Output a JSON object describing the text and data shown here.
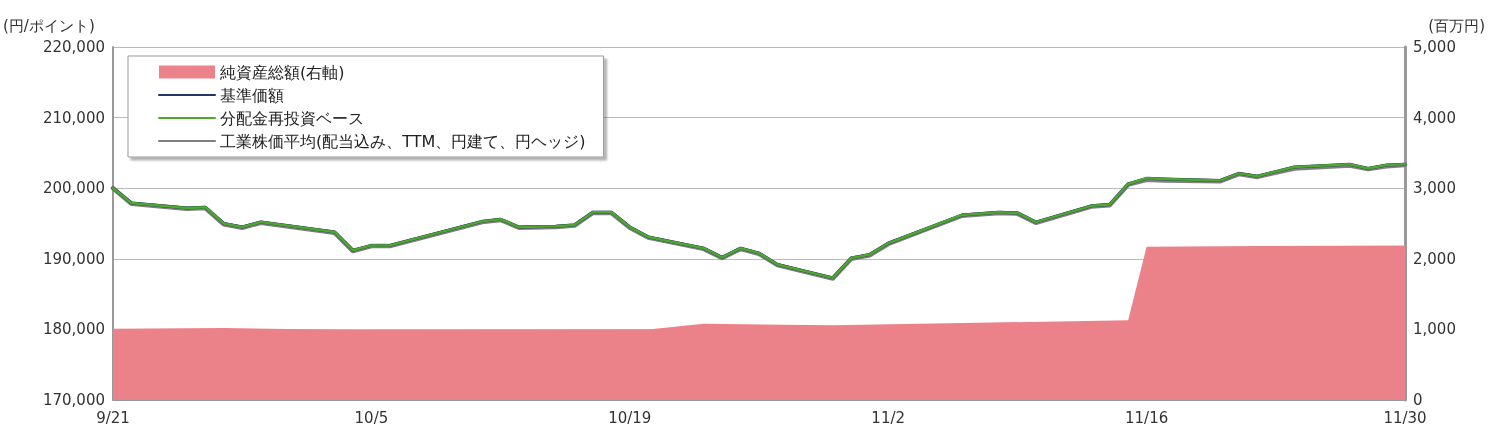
{
  "chart_data": {
    "type": "line",
    "ylabel": "(円/ポイント)",
    "y2label": "(百万円)",
    "xlim": [
      "--09-21",
      "--11-30"
    ],
    "xticks": [
      {
        "value": "--09-21",
        "label": "9/21"
      },
      {
        "value": "--10-05",
        "label": "10/5"
      },
      {
        "value": "--10-19",
        "label": "10/19"
      },
      {
        "value": "--11-02",
        "label": "11/2"
      },
      {
        "value": "--11-16",
        "label": "11/16"
      },
      {
        "value": "--11-30",
        "label": "11/30"
      }
    ],
    "ylim": [
      170000,
      220000
    ],
    "yticks": [
      {
        "value": 170000,
        "label": "170,000"
      },
      {
        "value": 180000,
        "label": "180,000"
      },
      {
        "value": 190000,
        "label": "190,000"
      },
      {
        "value": 200000,
        "label": "200,000"
      },
      {
        "value": 210000,
        "label": "210,000"
      },
      {
        "value": 220000,
        "label": "220,000"
      }
    ],
    "y2lim": [
      0,
      5000
    ],
    "y2ticks": [
      0,
      {
        "value": 1000,
        "label": "1,000"
      },
      {
        "value": 2000,
        "label": "2,000"
      },
      {
        "value": 3000,
        "label": "3,000"
      },
      {
        "value": 4000,
        "label": "4,000"
      },
      {
        "value": 5000,
        "label": "5,000"
      }
    ],
    "grid": "y",
    "legend": "top left",
    "marker": "none",
    "series": [
      {
        "name": "純資産総額(右軸)",
        "type": "area",
        "axis": "y2",
        "color": "#eb8289",
        "x": [
          "--09-21",
          "--09-27",
          "--10-04",
          "--10-19",
          "--10-20",
          "--10-23",
          "--10-30",
          "--11-06",
          "--11-15",
          "--11-16",
          "--11-22",
          "--11-30"
        ],
        "values": [
          1010,
          1020,
          990,
          1000,
          1000,
          1080,
          1060,
          1090,
          1130,
          2170,
          2180,
          2190
        ]
      },
      {
        "name": "基準価額",
        "type": "line",
        "color": "#203864",
        "x": [
          "--09-21",
          "--09-22",
          "--09-25",
          "--09-26",
          "--09-27",
          "--09-28",
          "--09-29",
          "--10-03",
          "--10-04",
          "--10-05",
          "--10-06",
          "--10-11",
          "--10-12",
          "--10-13",
          "--10-15",
          "--10-16",
          "--10-17",
          "--10-18",
          "--10-19",
          "--10-20",
          "--10-23",
          "--10-24",
          "--10-25",
          "--10-26",
          "--10-27",
          "--10-30",
          "--10-31",
          "--11-01",
          "--11-02",
          "--11-06",
          "--11-08",
          "--11-09",
          "--11-10",
          "--11-13",
          "--11-14",
          "--11-15",
          "--11-16",
          "--11-17",
          "--11-20",
          "--11-21",
          "--11-22",
          "--11-24",
          "--11-27",
          "--11-28",
          "--11-29",
          "--11-30"
        ],
        "values": [
          200000,
          197900,
          197200,
          197300,
          195000,
          194500,
          195200,
          193800,
          191200,
          191900,
          191900,
          195300,
          195600,
          194500,
          194600,
          194800,
          196600,
          196600,
          194500,
          193100,
          191500,
          190200,
          191500,
          190800,
          189200,
          187300,
          190100,
          190600,
          192200,
          196200,
          196600,
          196500,
          195200,
          197500,
          197700,
          200600,
          201400,
          201300,
          201100,
          202100,
          201700,
          203000,
          203400,
          202800,
          203300,
          203400
        ]
      },
      {
        "name": "分配金再投資ベース",
        "type": "line",
        "color": "#4ea72e",
        "x": [
          "--09-21",
          "--09-22",
          "--09-25",
          "--09-26",
          "--09-27",
          "--09-28",
          "--09-29",
          "--10-03",
          "--10-04",
          "--10-05",
          "--10-06",
          "--10-11",
          "--10-12",
          "--10-13",
          "--10-15",
          "--10-16",
          "--10-17",
          "--10-18",
          "--10-19",
          "--10-20",
          "--10-23",
          "--10-24",
          "--10-25",
          "--10-26",
          "--10-27",
          "--10-30",
          "--10-31",
          "--11-01",
          "--11-02",
          "--11-06",
          "--11-08",
          "--11-09",
          "--11-10",
          "--11-13",
          "--11-14",
          "--11-15",
          "--11-16",
          "--11-17",
          "--11-20",
          "--11-21",
          "--11-22",
          "--11-24",
          "--11-27",
          "--11-28",
          "--11-29",
          "--11-30"
        ],
        "values": [
          200000,
          197900,
          197200,
          197300,
          195000,
          194500,
          195200,
          193800,
          191200,
          191900,
          191900,
          195300,
          195600,
          194500,
          194600,
          194800,
          196600,
          196600,
          194500,
          193100,
          191500,
          190200,
          191500,
          190800,
          189200,
          187300,
          190100,
          190600,
          192200,
          196200,
          196600,
          196500,
          195200,
          197500,
          197700,
          200600,
          201400,
          201300,
          201100,
          202100,
          201700,
          203000,
          203400,
          202800,
          203300,
          203400
        ]
      },
      {
        "name": "工業株価平均(配当込み、TTM、円建て、円ヘッジ)",
        "type": "line",
        "color": "#7f7f7f",
        "x": [
          "--09-21",
          "--09-22",
          "--09-25",
          "--09-26",
          "--09-27",
          "--09-28",
          "--09-29",
          "--10-03",
          "--10-04",
          "--10-05",
          "--10-06",
          "--10-11",
          "--10-12",
          "--10-13",
          "--10-15",
          "--10-16",
          "--10-17",
          "--10-18",
          "--10-19",
          "--10-20",
          "--10-23",
          "--10-24",
          "--10-25",
          "--10-26",
          "--10-27",
          "--10-30",
          "--10-31",
          "--11-01",
          "--11-02",
          "--11-06",
          "--11-08",
          "--11-09",
          "--11-10",
          "--11-13",
          "--11-14",
          "--11-15",
          "--11-16",
          "--11-17",
          "--11-20",
          "--11-21",
          "--11-22",
          "--11-24",
          "--11-27",
          "--11-28",
          "--11-29",
          "--11-30"
        ],
        "values": [
          200000,
          197800,
          197100,
          197200,
          194900,
          194400,
          195100,
          193700,
          191100,
          191800,
          191800,
          195200,
          195500,
          194400,
          194500,
          194700,
          196500,
          196500,
          194400,
          193000,
          191400,
          190100,
          191400,
          190700,
          189100,
          187200,
          190000,
          190500,
          192100,
          196100,
          196500,
          196400,
          195100,
          197400,
          197600,
          200500,
          201200,
          201100,
          201000,
          202000,
          201600,
          202800,
          203200,
          202700,
          203100,
          203300
        ]
      }
    ]
  }
}
